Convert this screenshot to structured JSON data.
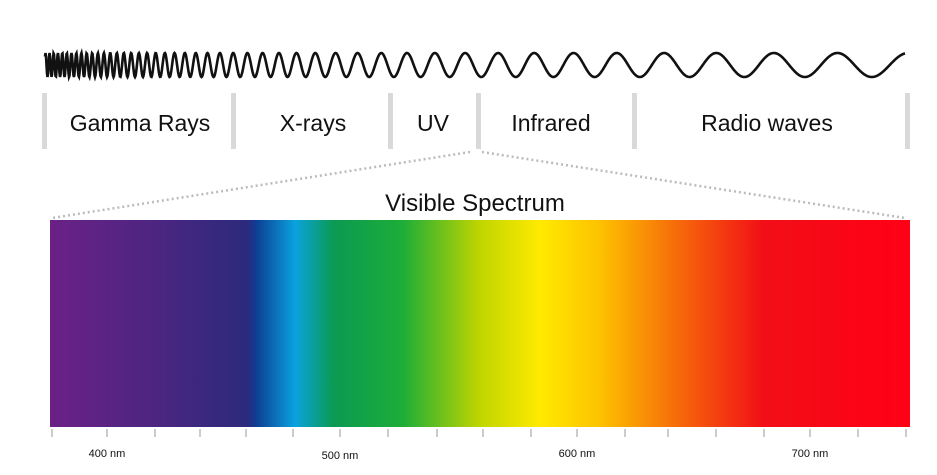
{
  "bands": [
    "Gamma Rays",
    "X-rays",
    "UV",
    "Infrared",
    "Radio waves"
  ],
  "title": "Visible Spectrum",
  "axis_labels": [
    "400 nm",
    "500 nm",
    "600 nm",
    "700 nm"
  ]
}
